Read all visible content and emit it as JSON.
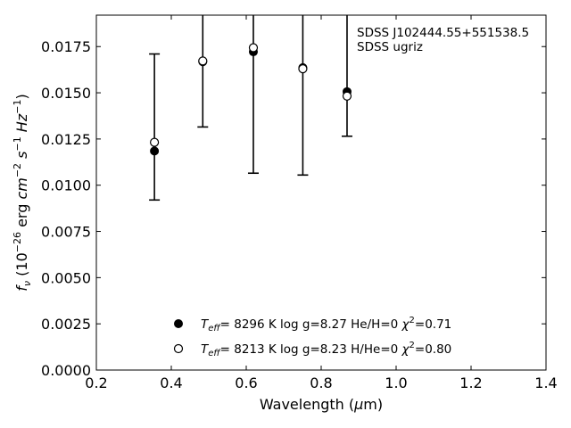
{
  "chart_data": {
    "type": "scatter",
    "xlabel": "Wavelength (μm)",
    "ylabel": "f_ν (10^-26 erg cm^-2 s^-1 Hz^-1)",
    "xlim": [
      0.2,
      1.4
    ],
    "ylim": [
      0.0,
      0.0192
    ],
    "x_ticks": [
      "0.2",
      "0.4",
      "0.6",
      "0.8",
      "1.0",
      "1.2",
      "1.4"
    ],
    "y_ticks": [
      "0.0000",
      "0.0025",
      "0.0050",
      "0.0075",
      "0.0100",
      "0.0125",
      "0.0150",
      "0.0175"
    ],
    "annotation": [
      "SDSS J102444.55+551538.5",
      "SDSS ugriz"
    ],
    "observed": {
      "x": [
        0.355,
        0.484,
        0.619,
        0.751,
        0.869
      ],
      "y_low": [
        0.0092,
        0.01315,
        0.01065,
        0.01055,
        0.01265
      ],
      "y_high": [
        0.0171,
        0.0192,
        0.0192,
        0.0192,
        0.0192
      ]
    },
    "series": [
      {
        "marker": "filled-circle",
        "x": [
          0.355,
          0.484,
          0.619,
          0.751,
          0.869
        ],
        "y": [
          0.01185,
          0.01668,
          0.01722,
          0.01636,
          0.01506
        ],
        "legend": {
          "teff": "8296 K",
          "logg": "log g=8.27",
          "comp": "He/H=0",
          "chi2": "=0.71"
        }
      },
      {
        "marker": "open-circle",
        "x": [
          0.355,
          0.484,
          0.619,
          0.751,
          0.869
        ],
        "y": [
          0.01232,
          0.01672,
          0.01744,
          0.0163,
          0.01482
        ],
        "legend": {
          "teff": "8213 K",
          "logg": "log g=8.23",
          "comp": "H/He=0",
          "chi2": "=0.80"
        }
      }
    ]
  }
}
